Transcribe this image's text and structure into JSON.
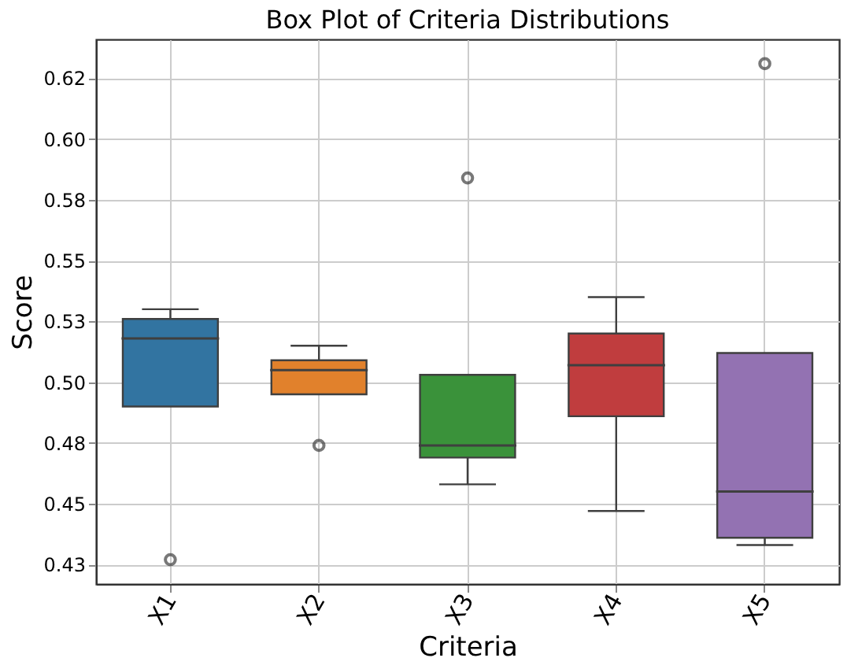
{
  "chart_data": {
    "type": "box",
    "title": "Box Plot of Criteria Distributions",
    "xlabel": "Criteria",
    "ylabel": "Score",
    "categories": [
      "X1",
      "X2",
      "X3",
      "X4",
      "X5"
    ],
    "colors": [
      "#3274a1",
      "#e1812c",
      "#3a923a",
      "#c03d3e",
      "#9372b2"
    ],
    "boxes": [
      {
        "low": 0.49,
        "q1": 0.49,
        "median": 0.518,
        "q3": 0.526,
        "high": 0.53,
        "outliers": [
          0.427
        ]
      },
      {
        "low": 0.495,
        "q1": 0.495,
        "median": 0.505,
        "q3": 0.509,
        "high": 0.515,
        "outliers": [
          0.474
        ]
      },
      {
        "low": 0.458,
        "q1": 0.469,
        "median": 0.474,
        "q3": 0.503,
        "high": 0.503,
        "outliers": [
          0.584
        ]
      },
      {
        "low": 0.447,
        "q1": 0.486,
        "median": 0.507,
        "q3": 0.52,
        "high": 0.535
      },
      {
        "low": 0.433,
        "q1": 0.436,
        "median": 0.455,
        "q3": 0.512,
        "high": 0.512,
        "outliers": [
          0.631
        ]
      }
    ],
    "ylim": [
      0.417,
      0.641
    ],
    "yticks": [
      {
        "value": 0.425,
        "label": "0.43"
      },
      {
        "value": 0.45,
        "label": "0.45"
      },
      {
        "value": 0.475,
        "label": "0.48"
      },
      {
        "value": 0.5,
        "label": "0.50"
      },
      {
        "value": 0.525,
        "label": "0.53"
      },
      {
        "value": 0.55,
        "label": "0.55"
      },
      {
        "value": 0.575,
        "label": "0.58"
      },
      {
        "value": 0.6,
        "label": "0.60"
      },
      {
        "value": 0.625,
        "label": "0.62"
      }
    ],
    "grid": true
  }
}
